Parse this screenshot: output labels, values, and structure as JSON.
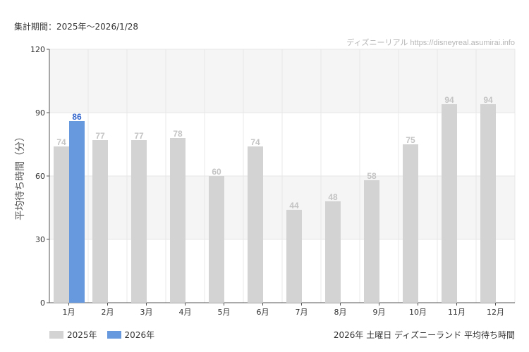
{
  "header": {
    "period_label": "集計期間：2025年～2026/1/28",
    "credit": "ディズニーリアル https://disneyreal.asumirai.info"
  },
  "footer": {
    "title": "2026年 土曜日 ディズニーランド 平均待ち時間"
  },
  "colors": {
    "series_2025": "#d3d3d3",
    "series_2026": "#6699dd",
    "label_2025": "#c4c4c4",
    "label_2026": "#3366cc"
  },
  "chart_data": {
    "type": "bar",
    "title": "2026年 土曜日 ディズニーランド 平均待ち時間",
    "xlabel": "",
    "ylabel": "平均待ち時間（分）",
    "ylim": [
      0,
      120
    ],
    "yticks": [
      "0",
      "30",
      "60",
      "90",
      "120"
    ],
    "ytick_values": [
      0,
      30,
      60,
      90,
      120
    ],
    "grid": true,
    "legend_position": "bottom-left",
    "categories": [
      "1月",
      "2月",
      "3月",
      "4月",
      "5月",
      "6月",
      "7月",
      "8月",
      "9月",
      "10月",
      "11月",
      "12月"
    ],
    "series": [
      {
        "name": "2025年",
        "values": [
          74,
          77,
          77,
          78,
          60,
          74,
          44,
          48,
          58,
          75,
          94,
          94
        ]
      },
      {
        "name": "2026年",
        "values": [
          86,
          null,
          null,
          null,
          null,
          null,
          null,
          null,
          null,
          null,
          null,
          null
        ]
      }
    ]
  }
}
